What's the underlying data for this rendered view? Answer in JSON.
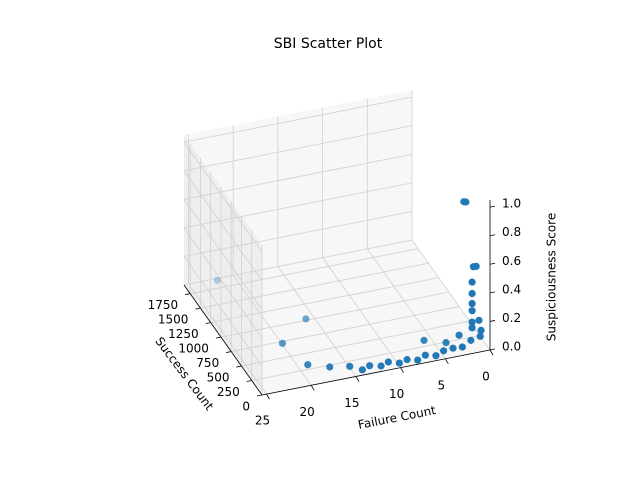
{
  "chart_data": {
    "type": "scatter3d",
    "title": "SBI Scatter Plot",
    "xlabel": "Failure Count",
    "ylabel": "Success Count",
    "zlabel": "Suspiciousness Score",
    "color": "#1f77b4",
    "grid": true,
    "xlim": [
      0,
      25.5
    ],
    "ylim": [
      0,
      1900
    ],
    "zlim": [
      0,
      1.05
    ],
    "xticks": [
      0,
      5,
      10,
      15,
      20,
      25
    ],
    "yticks": [
      0,
      250,
      500,
      750,
      1000,
      1250,
      1500,
      1750
    ],
    "zticks": [
      {
        "value": 0,
        "label": "0.0"
      },
      0.2,
      0.4,
      0.6,
      0.8,
      {
        "value": 1,
        "label": "1.0"
      }
    ],
    "x": [
      2,
      2.2,
      1.5,
      1.8,
      2,
      2,
      2,
      2,
      2,
      2,
      1,
      1,
      2,
      3,
      4,
      5,
      6,
      7,
      8,
      9,
      10,
      11,
      12,
      13,
      14,
      15,
      17,
      19,
      16,
      20,
      22,
      4,
      6,
      3,
      1
    ],
    "y": [
      150,
      160,
      10,
      12,
      0,
      0,
      0,
      0,
      0,
      0,
      0,
      20,
      30,
      20,
      30,
      40,
      10,
      50,
      20,
      60,
      30,
      80,
      40,
      100,
      60,
      150,
      200,
      300,
      1000,
      700,
      1850,
      200,
      300,
      100,
      50
    ],
    "z": [
      1.0,
      1.0,
      0.6,
      0.6,
      0.5,
      0.42,
      0.35,
      0.3,
      0.22,
      0.18,
      0.15,
      0.1,
      0.08,
      0.05,
      0.05,
      0.04,
      0.03,
      0.03,
      0.02,
      0.02,
      0.02,
      0.02,
      0.02,
      0.01,
      0.01,
      0.01,
      0.01,
      0.01,
      0.01,
      0.01,
      0.01,
      0.02,
      0.02,
      0.1,
      0.2
    ]
  }
}
